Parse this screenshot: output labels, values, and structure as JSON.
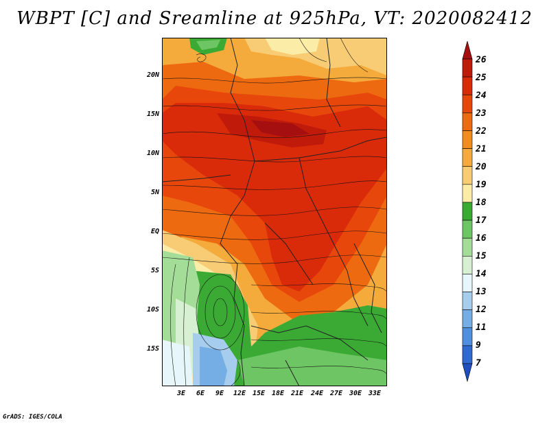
{
  "title": "WBPT [C] and Sreamline at 925hPa, VT: 2020082412",
  "credit": "GrADS: IGES/COLA",
  "lat_labels": [
    "20N",
    "15N",
    "10N",
    "5N",
    "EQ",
    "5S",
    "10S",
    "15S"
  ],
  "lon_labels": [
    "3E",
    "6E",
    "9E",
    "12E",
    "15E",
    "18E",
    "21E",
    "24E",
    "27E",
    "30E",
    "33E"
  ],
  "colorbar": {
    "labels": [
      "26",
      "25",
      "24",
      "23",
      "22",
      "21",
      "20",
      "19",
      "18",
      "17",
      "16",
      "15",
      "14",
      "13",
      "12",
      "11",
      "9",
      "7"
    ],
    "colors": [
      "#a50f0f",
      "#c01a0a",
      "#d92a0a",
      "#e8470c",
      "#ee6a10",
      "#f28c1a",
      "#f5ab3c",
      "#f8cc74",
      "#fbeca8",
      "#3aaa35",
      "#6ec564",
      "#a4dd98",
      "#d8f0d2",
      "#e6f6fb",
      "#a6cdee",
      "#74aee4",
      "#4f8fdd",
      "#2f69d1",
      "#1f4fbf"
    ]
  }
}
